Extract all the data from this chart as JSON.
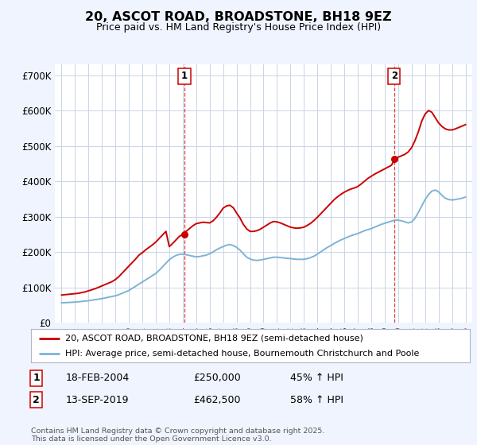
{
  "title": "20, ASCOT ROAD, BROADSTONE, BH18 9EZ",
  "subtitle": "Price paid vs. HM Land Registry's House Price Index (HPI)",
  "bg_color": "#f0f4ff",
  "plot_bg_color": "#ffffff",
  "grid_color": "#c8d4e8",
  "red_color": "#cc0000",
  "blue_color": "#7fb3d3",
  "ylim": [
    0,
    730000
  ],
  "yticks": [
    0,
    100000,
    200000,
    300000,
    400000,
    500000,
    600000,
    700000
  ],
  "ytick_labels": [
    "£0",
    "£100K",
    "£200K",
    "£300K",
    "£400K",
    "£500K",
    "£600K",
    "£700K"
  ],
  "transaction1": {
    "date": "18-FEB-2004",
    "price": 250000,
    "x": 2004.12,
    "hpi_change": "45% ↑ HPI"
  },
  "transaction2": {
    "date": "13-SEP-2019",
    "price": 462500,
    "x": 2019.7,
    "hpi_change": "58% ↑ HPI"
  },
  "legend_line1": "20, ASCOT ROAD, BROADSTONE, BH18 9EZ (semi-detached house)",
  "legend_line2": "HPI: Average price, semi-detached house, Bournemouth Christchurch and Poole",
  "footer": "Contains HM Land Registry data © Crown copyright and database right 2025.\nThis data is licensed under the Open Government Licence v3.0.",
  "hpi_x": [
    1995.0,
    1995.25,
    1995.5,
    1995.75,
    1996.0,
    1996.25,
    1996.5,
    1996.75,
    1997.0,
    1997.25,
    1997.5,
    1997.75,
    1998.0,
    1998.25,
    1998.5,
    1998.75,
    1999.0,
    1999.25,
    1999.5,
    1999.75,
    2000.0,
    2000.25,
    2000.5,
    2000.75,
    2001.0,
    2001.25,
    2001.5,
    2001.75,
    2002.0,
    2002.25,
    2002.5,
    2002.75,
    2003.0,
    2003.25,
    2003.5,
    2003.75,
    2004.0,
    2004.25,
    2004.5,
    2004.75,
    2005.0,
    2005.25,
    2005.5,
    2005.75,
    2006.0,
    2006.25,
    2006.5,
    2006.75,
    2007.0,
    2007.25,
    2007.5,
    2007.75,
    2008.0,
    2008.25,
    2008.5,
    2008.75,
    2009.0,
    2009.25,
    2009.5,
    2009.75,
    2010.0,
    2010.25,
    2010.5,
    2010.75,
    2011.0,
    2011.25,
    2011.5,
    2011.75,
    2012.0,
    2012.25,
    2012.5,
    2012.75,
    2013.0,
    2013.25,
    2013.5,
    2013.75,
    2014.0,
    2014.25,
    2014.5,
    2014.75,
    2015.0,
    2015.25,
    2015.5,
    2015.75,
    2016.0,
    2016.25,
    2016.5,
    2016.75,
    2017.0,
    2017.25,
    2017.5,
    2017.75,
    2018.0,
    2018.25,
    2018.5,
    2018.75,
    2019.0,
    2019.25,
    2019.5,
    2019.75,
    2020.0,
    2020.25,
    2020.5,
    2020.75,
    2021.0,
    2021.25,
    2021.5,
    2021.75,
    2022.0,
    2022.25,
    2022.5,
    2022.75,
    2023.0,
    2023.25,
    2023.5,
    2023.75,
    2024.0,
    2024.25,
    2024.5,
    2024.75,
    2025.0
  ],
  "hpi_y": [
    56000,
    56500,
    57000,
    57500,
    58000,
    59000,
    60000,
    61000,
    62000,
    63500,
    65000,
    66500,
    68000,
    70000,
    72000,
    74000,
    76000,
    79000,
    83000,
    87000,
    91000,
    97000,
    103000,
    109000,
    115000,
    121000,
    127000,
    133000,
    139000,
    148000,
    158000,
    168000,
    178000,
    185000,
    190000,
    193000,
    194000,
    192000,
    190000,
    188000,
    186000,
    187000,
    189000,
    191000,
    195000,
    200000,
    206000,
    211000,
    215000,
    219000,
    221000,
    218000,
    213000,
    205000,
    195000,
    185000,
    180000,
    177000,
    176000,
    177000,
    179000,
    181000,
    183000,
    185000,
    185000,
    184000,
    183000,
    182000,
    181000,
    180000,
    179000,
    179000,
    179000,
    181000,
    184000,
    188000,
    194000,
    200000,
    207000,
    213000,
    218000,
    224000,
    229000,
    234000,
    238000,
    242000,
    246000,
    249000,
    252000,
    256000,
    260000,
    263000,
    266000,
    270000,
    274000,
    278000,
    281000,
    284000,
    287000,
    290000,
    290000,
    288000,
    285000,
    282000,
    285000,
    295000,
    312000,
    330000,
    348000,
    362000,
    372000,
    375000,
    370000,
    360000,
    352000,
    348000,
    347000,
    348000,
    350000,
    352000,
    355000
  ],
  "red_x": [
    1995.0,
    1995.25,
    1995.5,
    1995.75,
    1996.0,
    1996.25,
    1996.5,
    1996.75,
    1997.0,
    1997.25,
    1997.5,
    1997.75,
    1998.0,
    1998.25,
    1998.5,
    1998.75,
    1999.0,
    1999.25,
    1999.5,
    1999.75,
    2000.0,
    2000.25,
    2000.5,
    2000.75,
    2001.0,
    2001.25,
    2001.5,
    2001.75,
    2002.0,
    2002.25,
    2002.5,
    2002.75,
    2003.0,
    2003.25,
    2003.5,
    2003.75,
    2004.0,
    2004.25,
    2004.5,
    2004.75,
    2005.0,
    2005.25,
    2005.5,
    2005.75,
    2006.0,
    2006.25,
    2006.5,
    2006.75,
    2007.0,
    2007.25,
    2007.5,
    2007.75,
    2008.0,
    2008.25,
    2008.5,
    2008.75,
    2009.0,
    2009.25,
    2009.5,
    2009.75,
    2010.0,
    2010.25,
    2010.5,
    2010.75,
    2011.0,
    2011.25,
    2011.5,
    2011.75,
    2012.0,
    2012.25,
    2012.5,
    2012.75,
    2013.0,
    2013.25,
    2013.5,
    2013.75,
    2014.0,
    2014.25,
    2014.5,
    2014.75,
    2015.0,
    2015.25,
    2015.5,
    2015.75,
    2016.0,
    2016.25,
    2016.5,
    2016.75,
    2017.0,
    2017.25,
    2017.5,
    2017.75,
    2018.0,
    2018.25,
    2018.5,
    2018.75,
    2019.0,
    2019.25,
    2019.5,
    2019.75,
    2020.0,
    2020.25,
    2020.5,
    2020.75,
    2021.0,
    2021.25,
    2021.5,
    2021.75,
    2022.0,
    2022.25,
    2022.5,
    2022.75,
    2023.0,
    2023.25,
    2023.5,
    2023.75,
    2024.0,
    2024.25,
    2024.5,
    2024.75,
    2025.0
  ],
  "red_y": [
    78000,
    79000,
    80000,
    81000,
    82000,
    83000,
    85000,
    87000,
    90000,
    93000,
    96000,
    100000,
    104000,
    108000,
    112000,
    116000,
    122000,
    130000,
    140000,
    150000,
    160000,
    170000,
    180000,
    191000,
    198000,
    206000,
    213000,
    220000,
    228000,
    238000,
    248000,
    258000,
    215000,
    224000,
    234000,
    244000,
    250000,
    258000,
    266000,
    274000,
    280000,
    282000,
    284000,
    283000,
    282000,
    288000,
    298000,
    310000,
    324000,
    330000,
    332000,
    325000,
    310000,
    296000,
    278000,
    265000,
    258000,
    258000,
    260000,
    264000,
    270000,
    276000,
    282000,
    286000,
    285000,
    282000,
    278000,
    274000,
    270000,
    268000,
    267000,
    268000,
    270000,
    275000,
    281000,
    289000,
    298000,
    308000,
    318000,
    328000,
    338000,
    348000,
    356000,
    363000,
    369000,
    374000,
    378000,
    381000,
    385000,
    392000,
    400000,
    408000,
    414000,
    420000,
    425000,
    430000,
    435000,
    440000,
    445000,
    462500,
    468000,
    472000,
    476000,
    483000,
    495000,
    515000,
    540000,
    570000,
    590000,
    600000,
    595000,
    580000,
    565000,
    555000,
    548000,
    545000,
    545000,
    548000,
    552000,
    556000,
    560000
  ]
}
